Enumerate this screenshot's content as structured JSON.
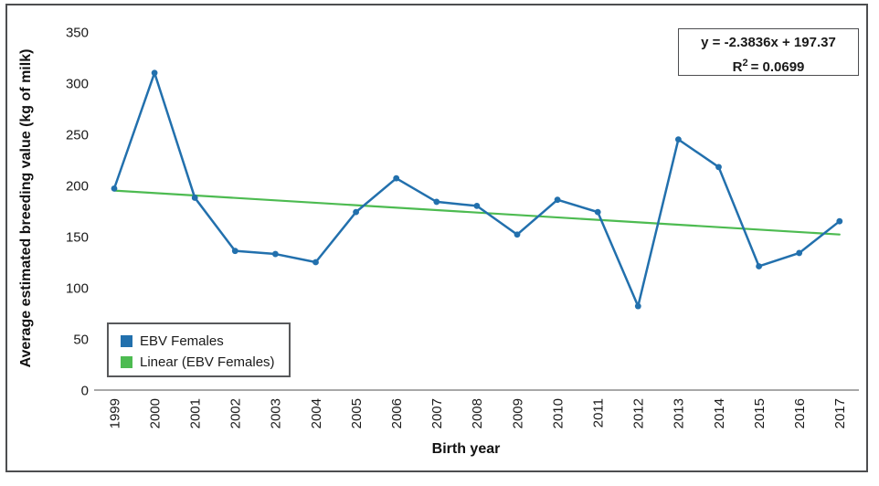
{
  "chart_data": {
    "type": "line",
    "title": "",
    "xlabel": "Birth year",
    "ylabel": "Average estimated breeding value (kg of milk)",
    "x": [
      "1999",
      "2000",
      "2001",
      "2002",
      "2003",
      "2004",
      "2005",
      "2006",
      "2007",
      "2008",
      "2009",
      "2010",
      "2011",
      "2012",
      "2013",
      "2014",
      "2015",
      "2016",
      "2017"
    ],
    "ylim": [
      0,
      350
    ],
    "yticks": [
      0,
      50,
      100,
      150,
      200,
      250,
      300,
      350
    ],
    "grid": false,
    "legend_position": "bottom-left",
    "axis_color": "#9c9c9c",
    "series": [
      {
        "name": "EBV Females",
        "color": "#2270AD",
        "values": [
          197,
          310,
          188,
          136,
          133,
          125,
          174,
          207,
          184,
          180,
          152,
          186,
          174,
          82,
          245,
          218,
          121,
          134,
          165
        ]
      }
    ],
    "trendline": {
      "name": "Linear (EBV Females)",
      "color": "#4DBB51",
      "slope": -2.3836,
      "intercept": 197.37,
      "equation": "y = -2.3836x + 197.37",
      "r2_base": "R",
      "r2_sup": "2",
      "r2_rest": "= 0.0699"
    }
  }
}
